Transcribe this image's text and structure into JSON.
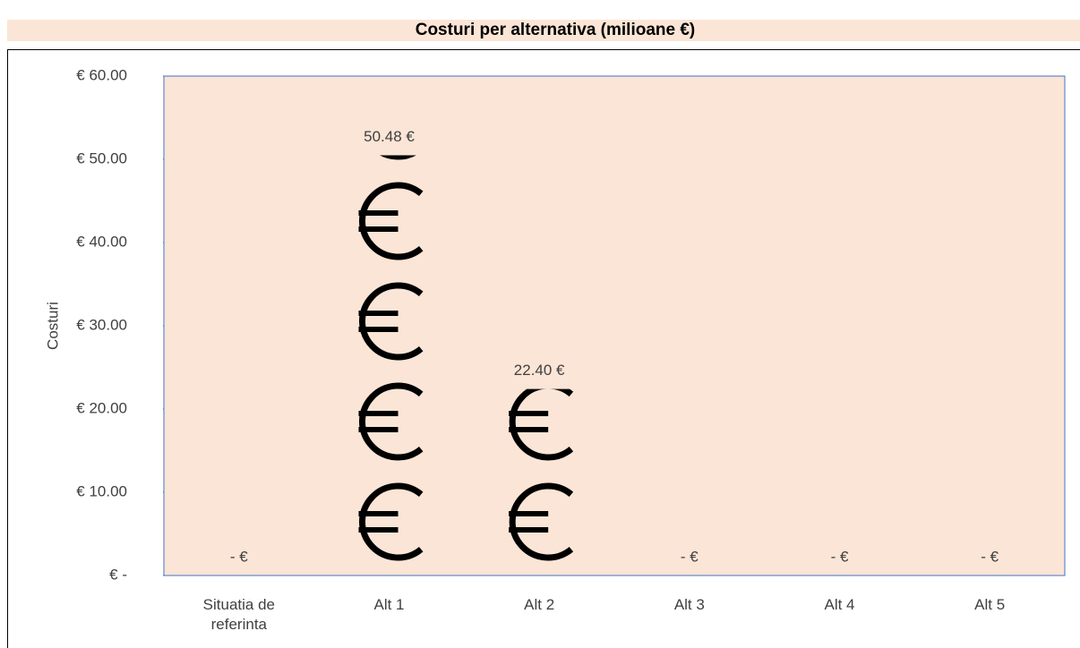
{
  "chart_data": {
    "type": "bar",
    "title": "Costuri per alternativa (milioane €)",
    "y_label": "Costuri",
    "categories": [
      "Situatia de referinta",
      "Alt 1",
      "Alt 2",
      "Alt 3",
      "Alt 4",
      "Alt 5"
    ],
    "values": [
      0,
      50.48,
      22.4,
      0,
      0,
      0
    ],
    "value_labels": [
      "-  €",
      "50.48 €",
      "22.40 €",
      "-  €",
      "-  €",
      "-  €"
    ],
    "color": "#000000",
    "ylim": [
      0,
      60
    ],
    "yticks": [
      {
        "value": 0,
        "label": "€ -"
      },
      {
        "value": 10,
        "label": "€ 10.00"
      },
      {
        "value": 20,
        "label": "€ 20.00"
      },
      {
        "value": 30,
        "label": "€ 30.00"
      },
      {
        "value": 40,
        "label": "€ 40.00"
      },
      {
        "value": 50,
        "label": "€ 50.00"
      },
      {
        "value": 60,
        "label": "€ 60.00"
      }
    ],
    "grid": false
  }
}
